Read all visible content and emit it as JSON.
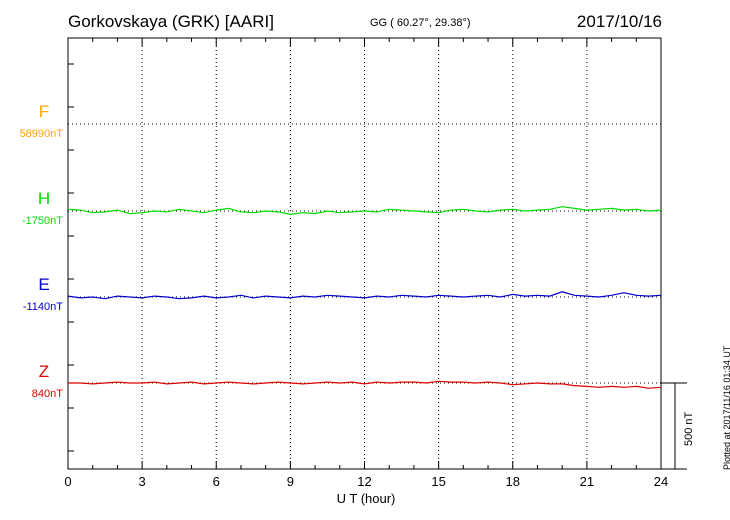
{
  "header": {
    "station": "Gorkovskaya (GRK)  [AARI]",
    "coords": "GG ( 60.27°,  29.38°)",
    "date": "2017/10/16"
  },
  "footer": {
    "plotted": "Plotted at 2017/11/16 01:34 UT"
  },
  "colors": {
    "F": "#ffa500",
    "H": "#00dd00",
    "E": "#0000cc",
    "Z": "#dd0000"
  },
  "chart_data": {
    "type": "line",
    "title": "Gorkovskaya (GRK)  [AARI]",
    "xlabel": "U T (hour)",
    "ylabel": "",
    "xlim": [
      0,
      24
    ],
    "x_ticks": [
      0,
      3,
      6,
      9,
      12,
      15,
      18,
      21,
      24
    ],
    "x_tick_labels": [
      "0",
      "3",
      "6",
      "9",
      "12",
      "15",
      "18",
      "21",
      "24"
    ],
    "scale_bar": {
      "label": "500 nT",
      "value_nT": 500
    },
    "grid": true,
    "series": [
      {
        "name": "F",
        "baseline": "58990nT",
        "values": []
      },
      {
        "name": "H",
        "baseline": "-1750nT",
        "x": [
          0,
          0.5,
          1,
          1.5,
          2,
          2.5,
          3,
          3.5,
          4,
          4.5,
          5,
          5.5,
          6,
          6.5,
          7,
          7.5,
          8,
          8.5,
          9,
          9.5,
          10,
          10.5,
          11,
          11.5,
          12,
          12.5,
          13,
          13.5,
          14,
          14.5,
          15,
          15.5,
          16,
          16.5,
          17,
          17.5,
          18,
          18.5,
          19,
          19.5,
          20,
          20.5,
          21,
          21.5,
          22,
          22.5,
          23,
          23.5,
          24
        ],
        "values": [
          10,
          5,
          -10,
          -5,
          5,
          -15,
          -10,
          0,
          -5,
          10,
          0,
          -10,
          5,
          15,
          -5,
          -10,
          0,
          -5,
          -20,
          -10,
          -15,
          0,
          -10,
          -5,
          0,
          -5,
          10,
          5,
          0,
          -5,
          -10,
          5,
          10,
          0,
          -5,
          5,
          10,
          0,
          5,
          10,
          25,
          15,
          5,
          10,
          15,
          5,
          10,
          0,
          5
        ]
      },
      {
        "name": "E",
        "baseline": "-1140nT",
        "x": [
          0,
          0.5,
          1,
          1.5,
          2,
          2.5,
          3,
          3.5,
          4,
          4.5,
          5,
          5.5,
          6,
          6.5,
          7,
          7.5,
          8,
          8.5,
          9,
          9.5,
          10,
          10.5,
          11,
          11.5,
          12,
          12.5,
          13,
          13.5,
          14,
          14.5,
          15,
          15.5,
          16,
          16.5,
          17,
          17.5,
          18,
          18.5,
          19,
          19.5,
          20,
          20.5,
          21,
          21.5,
          22,
          22.5,
          23,
          23.5,
          24
        ],
        "values": [
          5,
          -5,
          0,
          -10,
          5,
          0,
          -5,
          5,
          0,
          -10,
          -5,
          5,
          -5,
          0,
          10,
          -5,
          5,
          0,
          -5,
          5,
          0,
          10,
          5,
          0,
          -5,
          5,
          0,
          10,
          5,
          0,
          10,
          5,
          0,
          5,
          10,
          0,
          15,
          5,
          10,
          5,
          30,
          10,
          5,
          0,
          10,
          25,
          10,
          5,
          10
        ]
      },
      {
        "name": "Z",
        "baseline": "840nT",
        "x": [
          0,
          0.5,
          1,
          1.5,
          2,
          2.5,
          3,
          3.5,
          4,
          4.5,
          5,
          5.5,
          6,
          6.5,
          7,
          7.5,
          8,
          8.5,
          9,
          9.5,
          10,
          10.5,
          11,
          11.5,
          12,
          12.5,
          13,
          13.5,
          14,
          14.5,
          15,
          15.5,
          16,
          16.5,
          17,
          17.5,
          18,
          18.5,
          19,
          19.5,
          20,
          20.5,
          21,
          21.5,
          22,
          22.5,
          23,
          23.5,
          24
        ],
        "values": [
          0,
          0,
          -5,
          0,
          5,
          0,
          0,
          5,
          -5,
          0,
          5,
          -5,
          0,
          5,
          0,
          -5,
          0,
          5,
          0,
          -5,
          0,
          5,
          0,
          5,
          -5,
          5,
          0,
          5,
          5,
          0,
          10,
          5,
          5,
          0,
          5,
          0,
          -10,
          -5,
          0,
          -5,
          -5,
          -15,
          -20,
          -25,
          -20,
          -25,
          -20,
          -30,
          -25
        ]
      }
    ]
  }
}
